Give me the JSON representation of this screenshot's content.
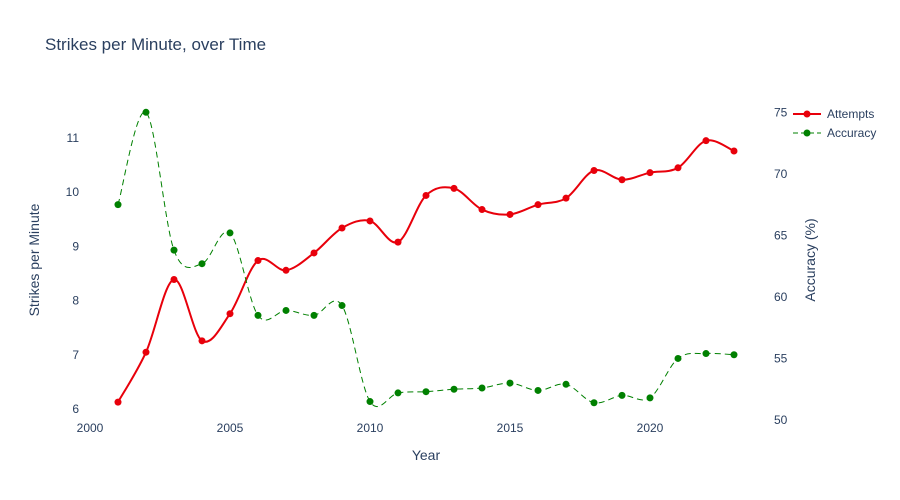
{
  "chart_data": {
    "type": "line",
    "title": "Strikes per Minute, over Time",
    "xlabel": "Year",
    "ylabel": "Strikes per Minute",
    "y2label": "Accuracy (%)",
    "xlim": [
      2000,
      2024
    ],
    "ylim": [
      5.8,
      11.7
    ],
    "y2lim": [
      50,
      76
    ],
    "x_ticks": [
      2000,
      2005,
      2010,
      2015,
      2020
    ],
    "y_ticks": [
      6,
      7,
      8,
      9,
      10,
      11
    ],
    "y2_ticks": [
      50,
      55,
      60,
      65,
      70,
      75
    ],
    "grid": false,
    "legend_position": "top-right",
    "x": [
      2001,
      2002,
      2003,
      2004,
      2005,
      2006,
      2007,
      2008,
      2009,
      2010,
      2011,
      2012,
      2013,
      2014,
      2015,
      2016,
      2017,
      2018,
      2019,
      2020,
      2021,
      2022,
      2023
    ],
    "series": [
      {
        "name": "Attempts",
        "axis": "left",
        "color": "#e8000b",
        "style": "solid-spline",
        "values": [
          6.13,
          7.05,
          8.39,
          7.26,
          7.76,
          8.74,
          8.56,
          8.88,
          9.34,
          9.47,
          9.08,
          9.94,
          10.07,
          9.68,
          9.59,
          9.77,
          9.89,
          10.4,
          10.23,
          10.36,
          10.45,
          10.95,
          10.76
        ]
      },
      {
        "name": "Accuracy",
        "axis": "right",
        "color": "#008000",
        "style": "dashed-spline",
        "values": [
          67.5,
          75.0,
          63.8,
          62.7,
          65.2,
          58.5,
          58.9,
          58.5,
          59.3,
          51.5,
          52.2,
          52.3,
          52.5,
          52.6,
          53.0,
          52.4,
          52.9,
          51.4,
          52.0,
          51.8,
          55.0,
          55.4,
          55.3
        ]
      }
    ]
  }
}
